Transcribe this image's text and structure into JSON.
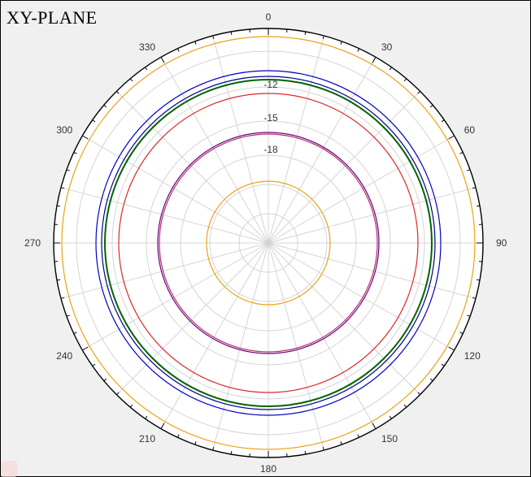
{
  "title": "XY-PLANE",
  "chart_data": {
    "type": "polar",
    "title": "XY-PLANE",
    "angle_labels": [
      "0",
      "30",
      "60",
      "90",
      "120",
      "150",
      "180",
      "210",
      "240",
      "270",
      "300",
      "330"
    ],
    "angle_direction": "clockwise",
    "angle_zero": "top",
    "ring_labels": [
      "-12",
      "-15",
      "-18"
    ],
    "grid": true,
    "series": [
      {
        "values_constant": -9.2,
        "color": "#e8a317"
      },
      {
        "values_constant": -11.3,
        "color": "#0000c8"
      },
      {
        "values_constant": -12.0,
        "color": "#00008b"
      },
      {
        "values_constant": -12.25,
        "color": "#006400"
      },
      {
        "values_constant": -13.4,
        "color": "#dc2828"
      },
      {
        "values_constant": -16.2,
        "color": "#6a0080"
      },
      {
        "values_constant": -16.35,
        "color": "#b0306a"
      },
      {
        "values_constant": -21.0,
        "color": "#e8a317"
      }
    ]
  }
}
